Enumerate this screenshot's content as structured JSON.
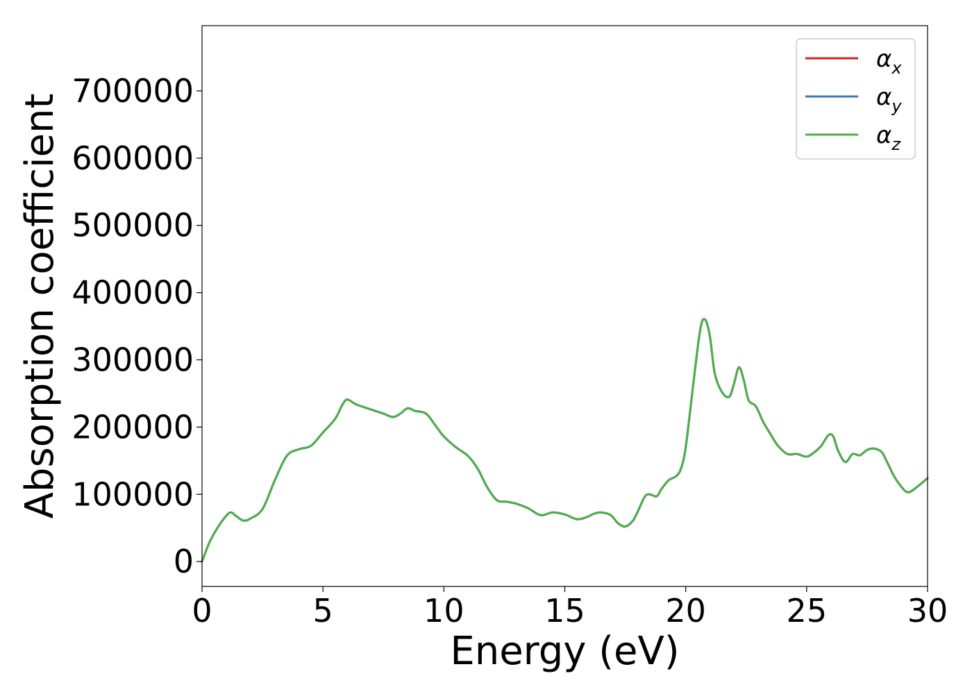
{
  "chart_data": {
    "type": "line",
    "xlabel": "Energy (eV)",
    "ylabel": "Absorption coefficient",
    "xlim": [
      0,
      30
    ],
    "ylim": [
      -37000,
      797000
    ],
    "x_ticks": [
      0,
      5,
      10,
      15,
      20,
      25,
      30
    ],
    "x_tick_labels": [
      "0",
      "5",
      "10",
      "15",
      "20",
      "25",
      "30"
    ],
    "y_ticks": [
      0,
      100000,
      200000,
      300000,
      400000,
      500000,
      600000,
      700000
    ],
    "y_tick_labels": [
      "0",
      "100000",
      "200000",
      "300000",
      "400000",
      "500000",
      "600000",
      "700000"
    ],
    "grid": false,
    "legend_position": "top-right",
    "x": [
      0,
      0.3,
      0.6,
      1.0,
      1.2,
      1.4,
      1.7,
      2.0,
      2.5,
      3.0,
      3.5,
      4.0,
      4.5,
      5.0,
      5.5,
      5.8,
      6.0,
      6.3,
      6.5,
      7.0,
      7.5,
      7.9,
      8.2,
      8.5,
      8.8,
      9.0,
      9.3,
      9.7,
      10.0,
      10.5,
      11.0,
      11.4,
      11.8,
      12.2,
      12.6,
      13.0,
      13.5,
      14.0,
      14.5,
      15.0,
      15.5,
      15.9,
      16.2,
      16.5,
      16.9,
      17.2,
      17.5,
      17.8,
      18.0,
      18.3,
      18.5,
      18.8,
      19.0,
      19.3,
      19.6,
      19.8,
      20.0,
      20.3,
      20.6,
      20.8,
      21.0,
      21.2,
      21.5,
      21.8,
      22.0,
      22.2,
      22.4,
      22.6,
      22.9,
      23.2,
      23.5,
      23.8,
      24.2,
      24.6,
      25.0,
      25.3,
      25.6,
      25.9,
      26.1,
      26.3,
      26.6,
      26.9,
      27.2,
      27.5,
      27.8,
      28.1,
      28.3,
      28.6,
      28.9,
      29.2,
      29.6,
      30.0
    ],
    "series": [
      {
        "name": "α_x",
        "label_main": "α",
        "label_sub": "x",
        "color": "#e41a1c",
        "values": [
          0,
          28000,
          48000,
          68000,
          73000,
          68000,
          61000,
          64000,
          78000,
          120000,
          157000,
          167000,
          172000,
          192000,
          212000,
          233000,
          241000,
          235000,
          232000,
          226000,
          220000,
          215000,
          220000,
          228000,
          224000,
          223000,
          219000,
          200000,
          186000,
          170000,
          157000,
          138000,
          110000,
          91000,
          89000,
          86000,
          79000,
          69000,
          73000,
          70000,
          63000,
          66000,
          71000,
          73000,
          69000,
          57000,
          52000,
          60000,
          73000,
          96000,
          100000,
          97000,
          108000,
          121000,
          127000,
          138000,
          170000,
          260000,
          345000,
          360000,
          335000,
          280000,
          252000,
          245000,
          265000,
          289000,
          270000,
          240000,
          231000,
          208000,
          190000,
          173000,
          160000,
          160000,
          156000,
          162000,
          172000,
          188000,
          186000,
          165000,
          148000,
          160000,
          158000,
          166000,
          168000,
          163000,
          150000,
          128000,
          112000,
          103000,
          112000,
          124000
        ]
      },
      {
        "name": "α_y",
        "label_main": "α",
        "label_sub": "y",
        "color": "#377eb8",
        "values": [
          0,
          28000,
          48000,
          68000,
          73000,
          68000,
          61000,
          64000,
          78000,
          120000,
          157000,
          167000,
          172000,
          192000,
          212000,
          233000,
          241000,
          235000,
          232000,
          226000,
          220000,
          215000,
          220000,
          228000,
          224000,
          223000,
          219000,
          200000,
          186000,
          170000,
          157000,
          138000,
          110000,
          91000,
          89000,
          86000,
          79000,
          69000,
          73000,
          70000,
          63000,
          66000,
          71000,
          73000,
          69000,
          57000,
          52000,
          60000,
          73000,
          96000,
          100000,
          97000,
          108000,
          121000,
          127000,
          138000,
          170000,
          260000,
          345000,
          360000,
          335000,
          280000,
          252000,
          245000,
          265000,
          289000,
          270000,
          240000,
          231000,
          208000,
          190000,
          173000,
          160000,
          160000,
          156000,
          162000,
          172000,
          188000,
          186000,
          165000,
          148000,
          160000,
          158000,
          166000,
          168000,
          163000,
          150000,
          128000,
          112000,
          103000,
          112000,
          124000
        ]
      },
      {
        "name": "α_z",
        "label_main": "α",
        "label_sub": "z",
        "color": "#4daf4a",
        "values": [
          0,
          28000,
          48000,
          68000,
          73000,
          68000,
          61000,
          64000,
          78000,
          120000,
          157000,
          167000,
          172000,
          192000,
          212000,
          233000,
          241000,
          235000,
          232000,
          226000,
          220000,
          215000,
          220000,
          228000,
          224000,
          223000,
          219000,
          200000,
          186000,
          170000,
          157000,
          138000,
          110000,
          91000,
          89000,
          86000,
          79000,
          69000,
          73000,
          70000,
          63000,
          66000,
          71000,
          73000,
          69000,
          57000,
          52000,
          60000,
          73000,
          96000,
          100000,
          97000,
          108000,
          121000,
          127000,
          138000,
          170000,
          260000,
          345000,
          360000,
          335000,
          280000,
          252000,
          245000,
          265000,
          289000,
          270000,
          240000,
          231000,
          208000,
          190000,
          173000,
          160000,
          160000,
          156000,
          162000,
          172000,
          188000,
          186000,
          165000,
          148000,
          160000,
          158000,
          166000,
          168000,
          163000,
          150000,
          128000,
          112000,
          103000,
          112000,
          124000
        ]
      }
    ]
  }
}
